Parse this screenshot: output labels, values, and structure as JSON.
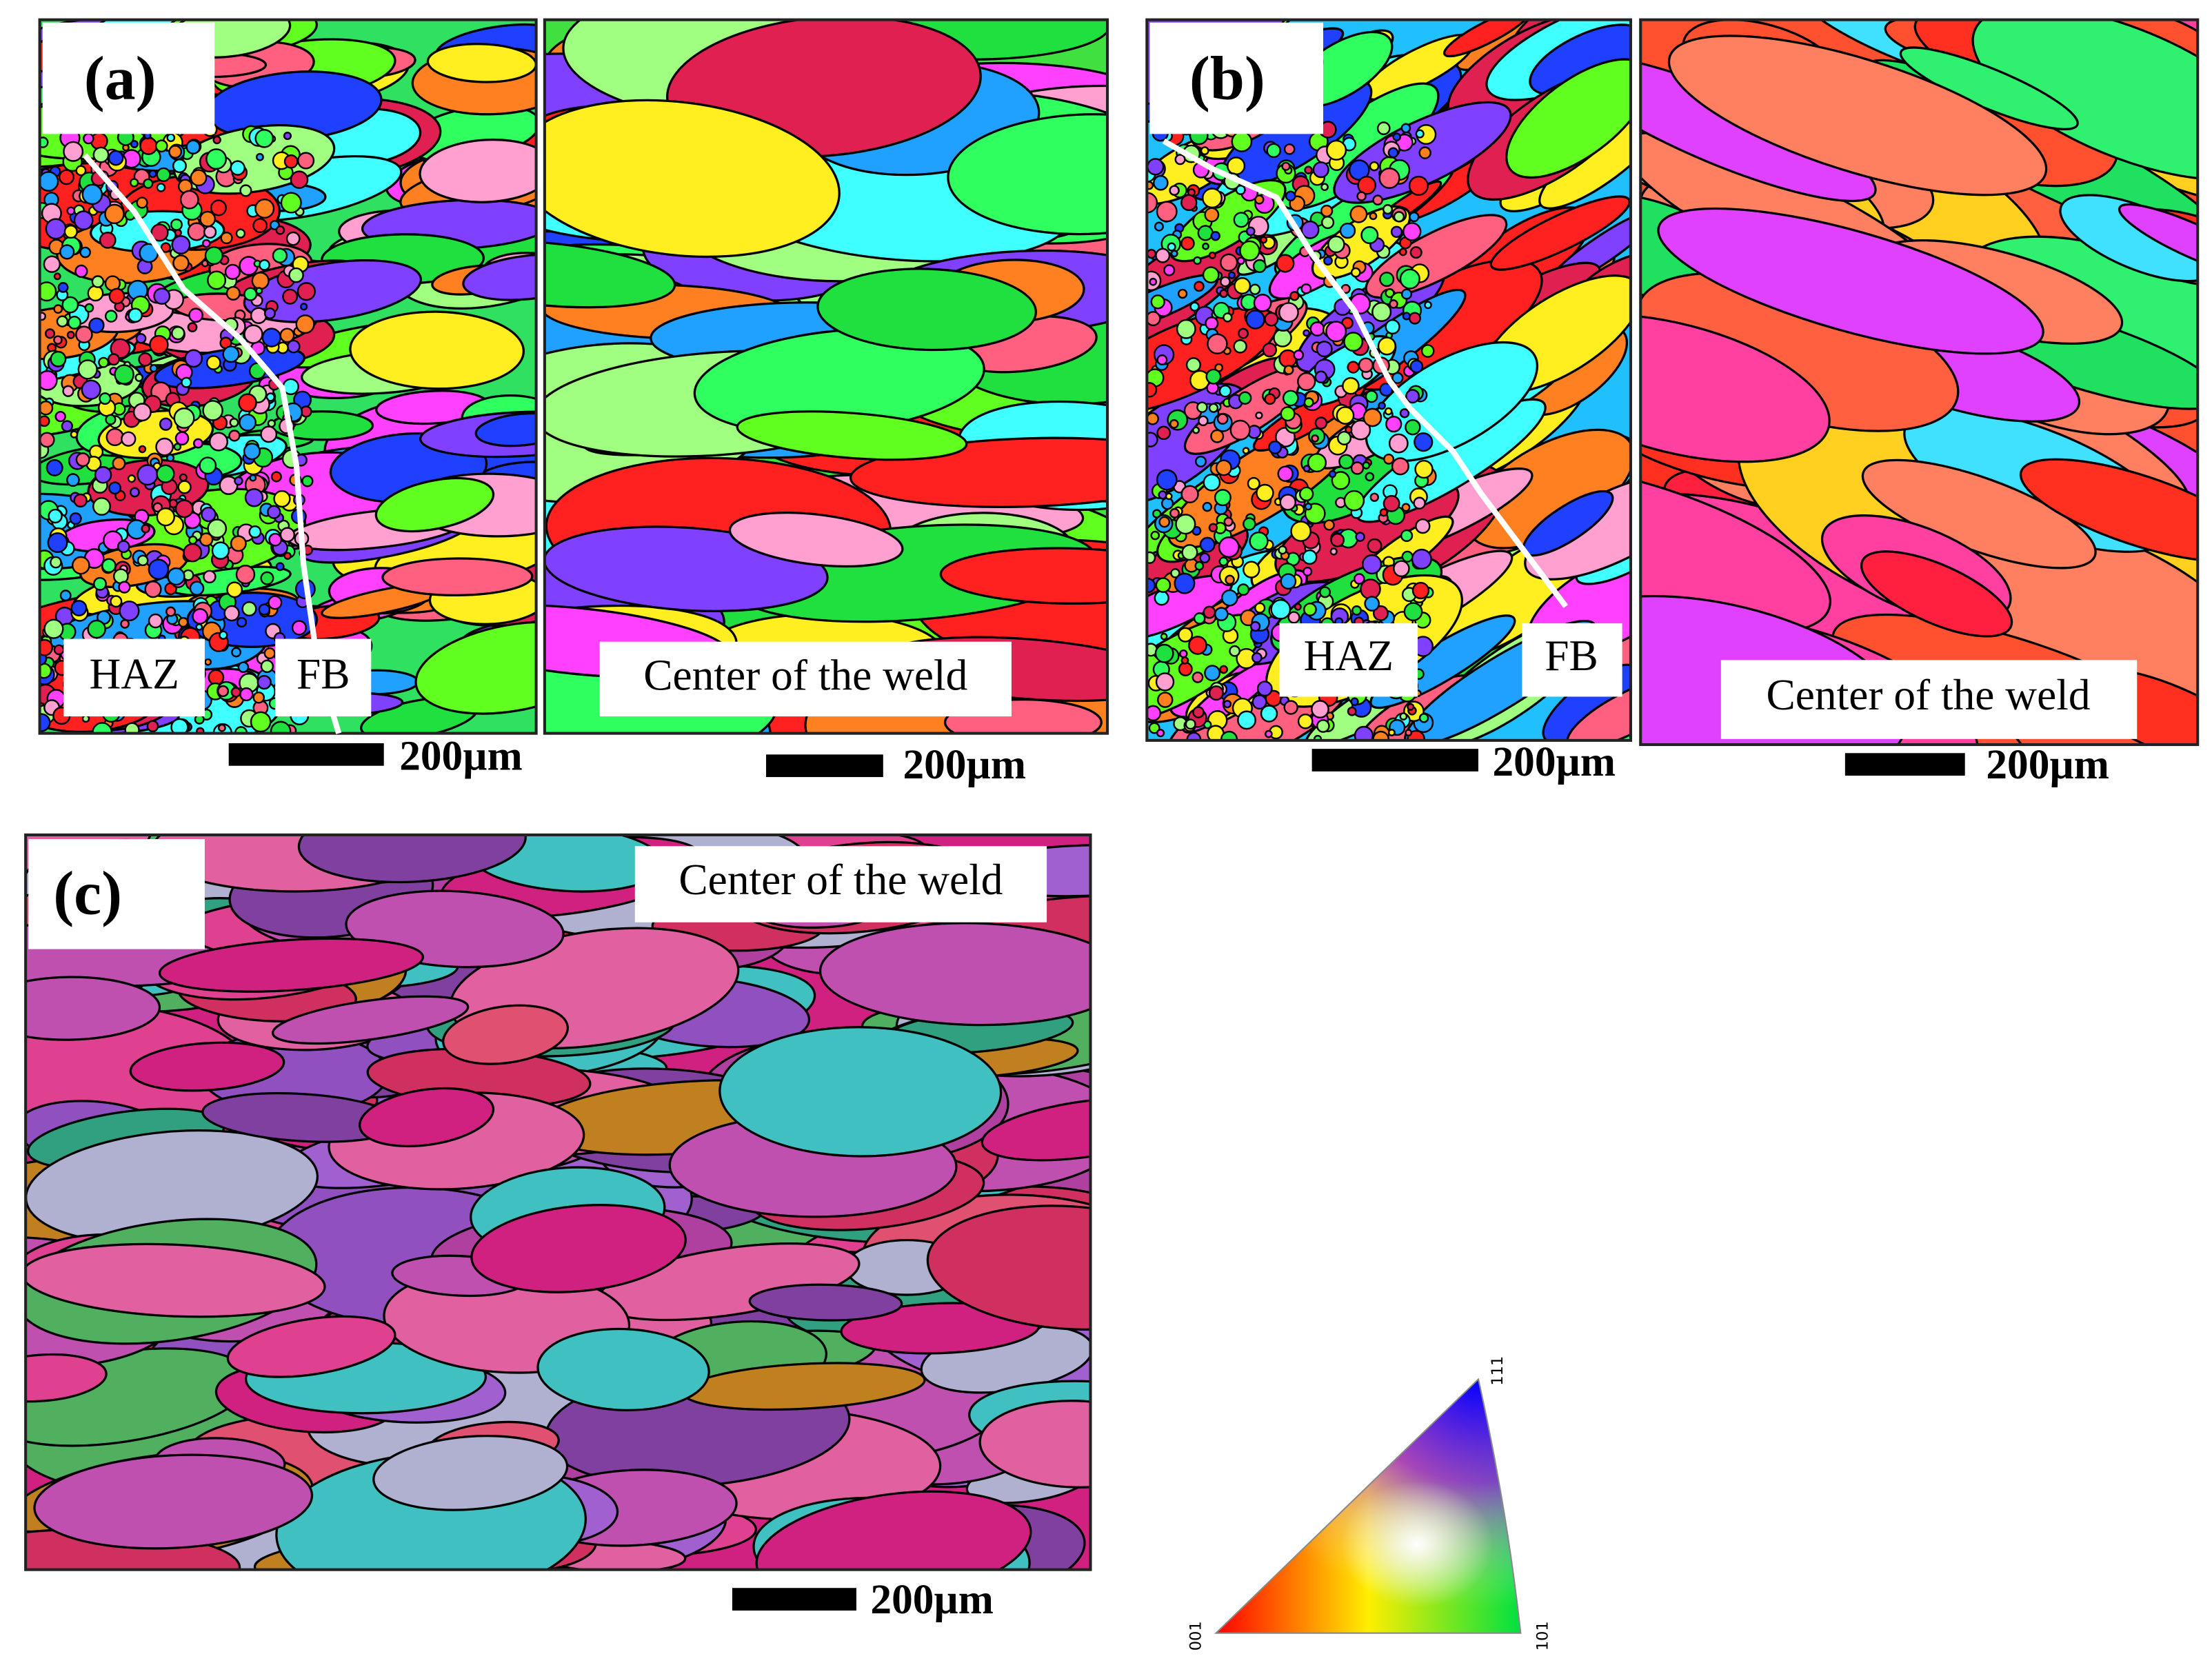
{
  "panels": [
    {
      "label": "(a)",
      "maps": [
        {
          "annotations": [
            "HAZ",
            "FB"
          ],
          "scale_bar": "200µm"
        },
        {
          "annotations": [
            "Center of the weld"
          ],
          "scale_bar": "200µm"
        }
      ]
    },
    {
      "label": "(b)",
      "maps": [
        {
          "annotations": [
            "HAZ",
            "FB"
          ],
          "scale_bar": "200µm"
        },
        {
          "annotations": [
            "Center of the weld"
          ],
          "scale_bar": "200µm"
        }
      ]
    },
    {
      "label": "(c)",
      "maps": [
        {
          "annotations": [
            "Center of the weld"
          ],
          "scale_bar": "200µm"
        }
      ]
    }
  ],
  "legend": {
    "corners": [
      "001",
      "101",
      "111"
    ]
  }
}
